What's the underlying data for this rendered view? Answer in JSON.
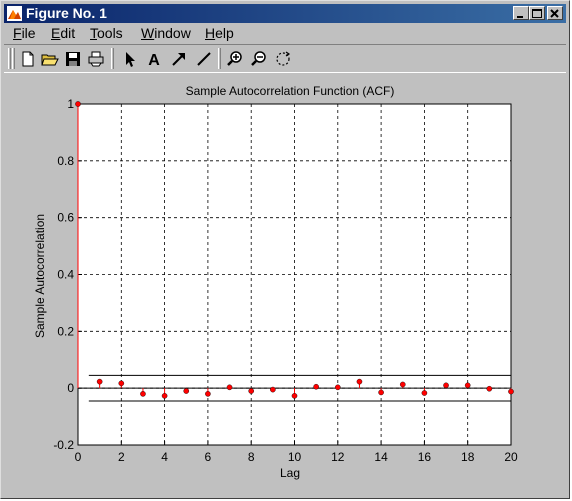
{
  "window": {
    "title": "Figure No. 1",
    "controls": [
      "minimize",
      "maximize",
      "close"
    ]
  },
  "menu": {
    "items": [
      {
        "label": "File",
        "mnemonic": "F",
        "rest": "ile"
      },
      {
        "label": "Edit",
        "mnemonic": "E",
        "rest": "dit"
      },
      {
        "label": "Tools",
        "mnemonic": "T",
        "rest": "ools"
      },
      {
        "label": "Window",
        "mnemonic": "W",
        "rest": "indow"
      },
      {
        "label": "Help",
        "mnemonic": "H",
        "rest": "elp"
      }
    ]
  },
  "toolbar": {
    "tools": [
      "new-file-icon",
      "open-folder-icon",
      "save-icon",
      "print-icon",
      "select-arrow-icon",
      "text-icon",
      "arrow-icon",
      "line-icon",
      "zoom-in-icon",
      "zoom-out-icon",
      "rotate-icon"
    ],
    "text_tool_glyph": "A"
  },
  "colors": {
    "titlebar": "#0a246a",
    "chrome": "#c0c0c0",
    "stem": "#ff0000",
    "bounds": "#000000"
  },
  "chart_data": {
    "type": "scatter",
    "title": "Sample Autocorrelation Function (ACF)",
    "xlabel": "Lag",
    "ylabel": "Sample Autocorrelation",
    "xlim": [
      0,
      20
    ],
    "ylim": [
      -0.2,
      1
    ],
    "xticks": [
      0,
      2,
      4,
      6,
      8,
      10,
      12,
      14,
      16,
      18,
      20
    ],
    "yticks": [
      -0.2,
      0,
      0.2,
      0.4,
      0.6,
      0.8,
      1
    ],
    "ytick_labels": [
      "-0.2",
      "0",
      "0.2",
      "0.4",
      "0.6",
      "0.8",
      "1"
    ],
    "grid": true,
    "series": [
      {
        "x": [
          0,
          1,
          2,
          3,
          4,
          5,
          6,
          7,
          8,
          9,
          10,
          11,
          12,
          13,
          14,
          15,
          16,
          17,
          18,
          19,
          20
        ],
        "values": [
          1.0,
          0.023,
          0.017,
          -0.02,
          -0.027,
          -0.01,
          -0.02,
          0.003,
          -0.01,
          -0.005,
          -0.027,
          0.005,
          0.003,
          0.023,
          -0.015,
          0.013,
          -0.017,
          0.01,
          0.01,
          -0.002,
          -0.012
        ]
      }
    ],
    "confidence_bounds": {
      "x_range": [
        0.5,
        20
      ],
      "upper": 0.045,
      "lower": -0.045
    }
  }
}
